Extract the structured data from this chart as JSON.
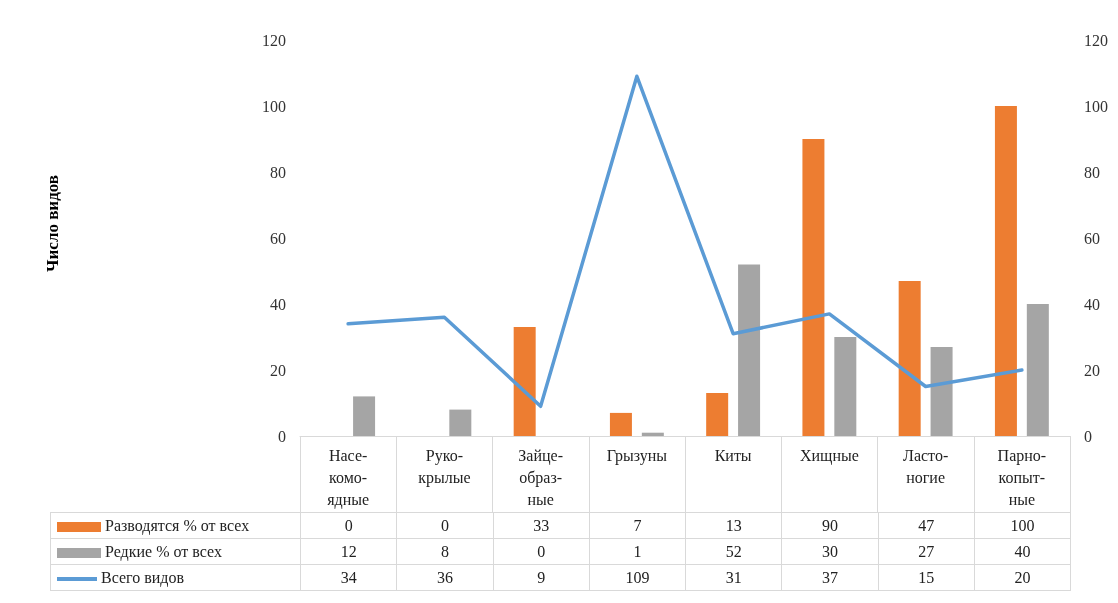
{
  "chart_data": {
    "type": "bar",
    "annotations": [
      "Число видов"
    ],
    "categories": [
      "Насе-\nкомо-\nядные",
      "Руко-\nкрылые",
      "Зайце-\nобраз-\nные",
      "Грызуны",
      "Киты",
      "Хищные",
      "Ласто-\nногие",
      "Парно-\nкопыт-\nные"
    ],
    "series": [
      {
        "name": "Разводятся % от всех",
        "color": "#ed7d31",
        "values": [
          0,
          0,
          33,
          7,
          13,
          90,
          47,
          100
        ]
      },
      {
        "name": "Редкие % от всех",
        "color": "#a5a5a5",
        "values": [
          12,
          8,
          0,
          1,
          52,
          30,
          27,
          40
        ]
      },
      {
        "name": "Всего видов",
        "type": "line",
        "color": "#5b9bd5",
        "values": [
          34,
          36,
          9,
          109,
          31,
          37,
          15,
          20
        ]
      }
    ],
    "ylim": [
      0,
      120
    ],
    "yticks": [
      0,
      20,
      40,
      60,
      80,
      100,
      120
    ],
    "y2lim": [
      0,
      120
    ],
    "y2ticks": [
      0,
      20,
      40,
      60,
      80,
      100,
      120
    ],
    "grid": false,
    "legend": "bottom",
    "marker": "none",
    "line_style": "solid",
    "data_labels": true
  }
}
